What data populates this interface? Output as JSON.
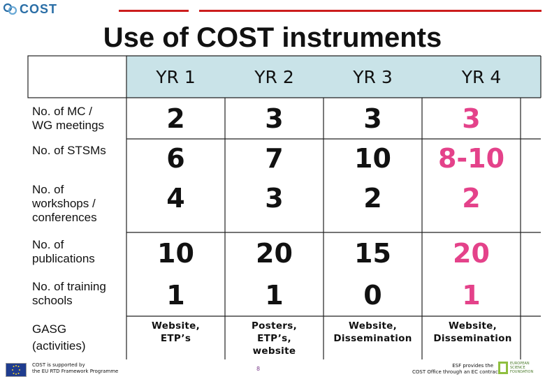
{
  "header": {
    "logo_text": "COST",
    "title": "Use of COST instruments"
  },
  "table": {
    "years": [
      "YR 1",
      "YR 2",
      "YR 3",
      "YR 4"
    ],
    "rows": [
      {
        "label_lines": [
          "No. of MC /",
          "WG meetings"
        ],
        "values": [
          "2",
          "3",
          "3",
          "3"
        ]
      },
      {
        "label_lines": [
          "No. of STSMs"
        ],
        "values": [
          "6",
          "7",
          "10",
          "8-10"
        ]
      },
      {
        "label_lines": [
          "No. of",
          "workshops /",
          "conferences"
        ],
        "values": [
          "4",
          "3",
          "2",
          "2"
        ]
      },
      {
        "label_lines": [
          "No. of",
          "publications"
        ],
        "values": [
          "10",
          "20",
          "15",
          "20"
        ]
      },
      {
        "label_lines": [
          "No. of training",
          "schools"
        ],
        "values": [
          "1",
          "1",
          "0",
          "1"
        ]
      },
      {
        "label_lines": [
          "GASG",
          "(activities)"
        ],
        "values": [
          [
            "Website,",
            "ETP’s"
          ],
          [
            "Posters,",
            "ETP’s,",
            "website"
          ],
          [
            "Website,",
            "Dissemination"
          ],
          [
            "Website,",
            "Dissemination"
          ]
        ]
      }
    ]
  },
  "footer": {
    "left_lines": [
      "COST is supported by",
      "the EU RTD Framework Programme"
    ],
    "page_number": "8",
    "right_lines": [
      "ESF provides the",
      "COST Office through an EC contract"
    ],
    "esf_logo_lines": [
      "EUROPEAN",
      "SCIENCE",
      "FOUNDATION"
    ]
  },
  "colors": {
    "header_bg": "#c9e3e8",
    "accent_red": "#cc1e1e",
    "year4_text": "#e4428a",
    "logo_blue": "#2a6ea6"
  }
}
